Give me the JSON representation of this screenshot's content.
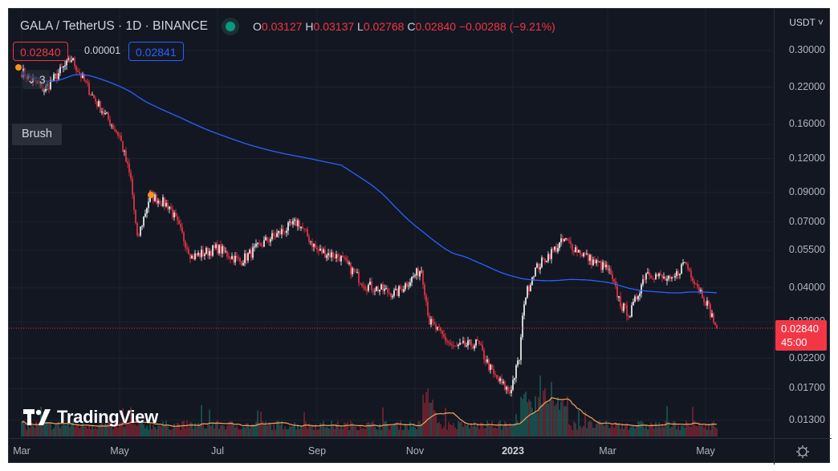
{
  "header": {
    "symbol_title": "GALA / TetherUS · 1D · BINANCE",
    "market_status": "open",
    "ohlc": {
      "o_label": "O",
      "open": "0.03127",
      "h_label": "H",
      "high": "0.03137",
      "l_label": "L",
      "low": "0.02768",
      "c_label": "C",
      "close": "0.02840",
      "change": "−0.00288 (−9.21%)"
    }
  },
  "measure": {
    "price_a": "0.02840",
    "difference": "0.00001",
    "price_b": "0.02841"
  },
  "indicator_toggle": {
    "label": "3"
  },
  "tooltip": {
    "label": "Brush"
  },
  "logo": {
    "text": "TradingView"
  },
  "price_axis": {
    "currency": "USDT",
    "ticks": [
      "0.30000",
      "0.22000",
      "0.16000",
      "0.12000",
      "0.09000",
      "0.07000",
      "0.05500",
      "0.04000",
      "0.03000",
      "0.02200",
      "0.01700",
      "0.01300"
    ],
    "last_price": "0.02840",
    "countdown": "45:00"
  },
  "time_axis": {
    "ticks": [
      "Mar",
      "May",
      "Jul",
      "Sep",
      "Nov",
      "2023",
      "Mar",
      "May"
    ]
  },
  "colors": {
    "background": "#131722",
    "up": "#ffffff",
    "down": "#f23645",
    "ma_price": "#2962ff",
    "ma_volume": "#f7a35c",
    "vol_up": "#22ab94",
    "vol_down": "#f23645"
  },
  "chart_data": {
    "type": "candlestick",
    "y_scale": "log",
    "ylim": [
      0.0115,
      0.33
    ],
    "xlim": [
      "2022-02-25",
      "2023-06-15"
    ],
    "approx_close_path": [
      [
        "2022-03-01",
        0.25
      ],
      [
        "2022-03-15",
        0.215
      ],
      [
        "2022-04-01",
        0.28
      ],
      [
        "2022-04-15",
        0.2
      ],
      [
        "2022-05-01",
        0.145
      ],
      [
        "2022-05-08",
        0.1
      ],
      [
        "2022-05-12",
        0.06
      ],
      [
        "2022-05-20",
        0.088
      ],
      [
        "2022-06-01",
        0.08
      ],
      [
        "2022-06-15",
        0.052
      ],
      [
        "2022-07-01",
        0.056
      ],
      [
        "2022-07-15",
        0.05
      ],
      [
        "2022-08-01",
        0.06
      ],
      [
        "2022-08-20",
        0.07
      ],
      [
        "2022-09-01",
        0.055
      ],
      [
        "2022-09-15",
        0.052
      ],
      [
        "2022-10-01",
        0.041
      ],
      [
        "2022-10-20",
        0.038
      ],
      [
        "2022-11-05",
        0.047
      ],
      [
        "2022-11-10",
        0.03
      ],
      [
        "2022-11-25",
        0.024
      ],
      [
        "2022-12-10",
        0.025
      ],
      [
        "2022-12-20",
        0.019
      ],
      [
        "2022-12-30",
        0.0165
      ],
      [
        "2023-01-05",
        0.022
      ],
      [
        "2023-01-08",
        0.036
      ],
      [
        "2023-01-14",
        0.046
      ],
      [
        "2023-01-22",
        0.052
      ],
      [
        "2023-02-02",
        0.06
      ],
      [
        "2023-02-20",
        0.05
      ],
      [
        "2023-03-01",
        0.047
      ],
      [
        "2023-03-10",
        0.034
      ],
      [
        "2023-03-15",
        0.032
      ],
      [
        "2023-03-25",
        0.046
      ],
      [
        "2023-04-10",
        0.042
      ],
      [
        "2023-04-18",
        0.05
      ],
      [
        "2023-05-01",
        0.036
      ],
      [
        "2023-05-08",
        0.0284
      ]
    ],
    "moving_average": "blue",
    "volume_moving_average": "orange"
  }
}
